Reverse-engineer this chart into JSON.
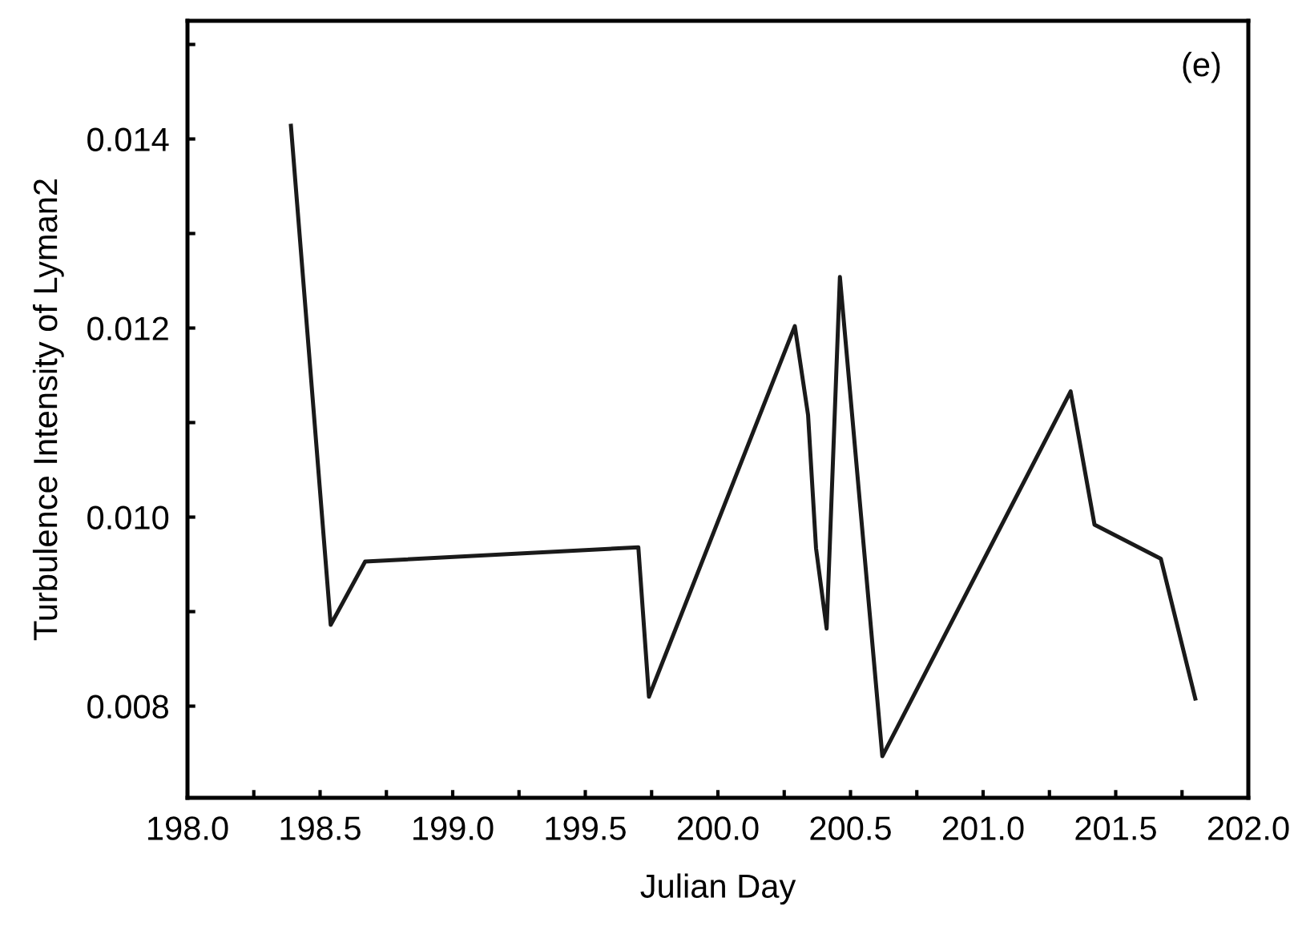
{
  "chart_data": {
    "type": "line",
    "xlabel": "Julian Day",
    "ylabel": "Turbulence Intensity of Lyman2",
    "annotations": [
      "(e)"
    ],
    "x": [
      198.39,
      198.54,
      198.67,
      199.7,
      199.74,
      200.29,
      200.34,
      200.37,
      200.41,
      200.46,
      200.62,
      201.33,
      201.42,
      201.67,
      201.8
    ],
    "series": [
      {
        "color": "#1a1a1a",
        "values": [
          0.01414,
          0.00886,
          0.00953,
          0.00968,
          0.0081,
          0.01202,
          0.01108,
          0.00967,
          0.00882,
          0.01254,
          0.00747,
          0.01133,
          0.00992,
          0.00956,
          0.00808
        ]
      }
    ],
    "xlim": [
      198.0,
      202.0
    ],
    "ylim": [
      0.00703,
      0.01525
    ],
    "xticks": [
      {
        "value": 198.0,
        "label": "198.0"
      },
      {
        "value": 198.25,
        "label": null
      },
      {
        "value": 198.5,
        "label": "198.5"
      },
      {
        "value": 198.75,
        "label": null
      },
      {
        "value": 199.0,
        "label": "199.0"
      },
      {
        "value": 199.25,
        "label": null
      },
      {
        "value": 199.5,
        "label": "199.5"
      },
      {
        "value": 199.75,
        "label": null
      },
      {
        "value": 200.0,
        "label": "200.0"
      },
      {
        "value": 200.25,
        "label": null
      },
      {
        "value": 200.5,
        "label": "200.5"
      },
      {
        "value": 200.75,
        "label": null
      },
      {
        "value": 201.0,
        "label": "201.0"
      },
      {
        "value": 201.25,
        "label": null
      },
      {
        "value": 201.5,
        "label": "201.5"
      },
      {
        "value": 201.75,
        "label": null
      },
      {
        "value": 202.0,
        "label": "202.0"
      }
    ],
    "yticks": [
      0.008,
      {
        "value": 0.009,
        "label": null
      },
      {
        "value": 0.01,
        "label": "0.010"
      },
      {
        "value": 0.011,
        "label": null
      },
      0.012,
      {
        "value": 0.013,
        "label": null
      },
      0.014,
      {
        "value": 0.015,
        "label": null
      }
    ],
    "grid": false,
    "legend": false,
    "marker": "none",
    "line_style": "solid"
  }
}
